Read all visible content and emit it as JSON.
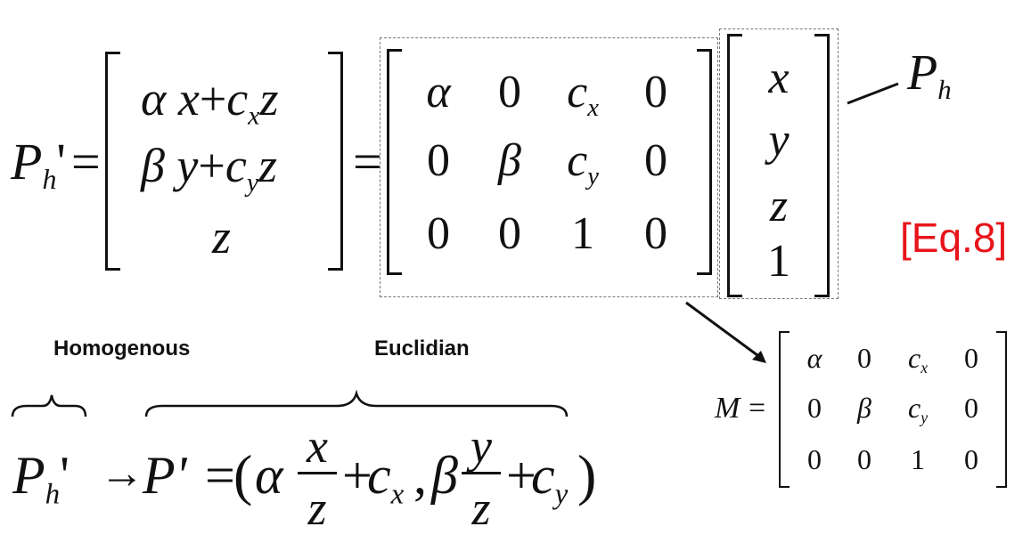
{
  "equation_label": "[Eq.8]",
  "label_color": "#e8141b",
  "top_eq": {
    "lhs_main": "P",
    "lhs_sub": "h",
    "lhs_prime": "'",
    "equals1": "=",
    "equals2": "=",
    "rows": [
      {
        "a": "α",
        "b": "x",
        "c": "c",
        "c_sub": "x",
        "d": "z",
        "op": "+"
      },
      {
        "a": "β",
        "b": "y",
        "c": "c",
        "c_sub": "y",
        "d": "z",
        "op": "+"
      },
      {
        "a": "",
        "b": "z",
        "c": "",
        "c_sub": "",
        "d": "",
        "op": ""
      }
    ],
    "matrix": [
      [
        "α",
        "0",
        "c",
        "0"
      ],
      [
        "0",
        "β",
        "c",
        "0"
      ],
      [
        "0",
        "0",
        "1",
        "0"
      ]
    ],
    "matrix_c_subs": [
      "x",
      "y"
    ],
    "vector": [
      "x",
      "y",
      "z",
      "1"
    ],
    "vector_label_main": "P",
    "vector_label_sub": "h"
  },
  "labels": {
    "homogenous": "Homogenous",
    "euclidian": "Euclidian"
  },
  "bottom_eq": {
    "lhs_main": "P",
    "lhs_sub": "h",
    "lhs_prime": "'",
    "arrow": "→",
    "p_prime": "P'",
    "equals": "=",
    "open": "(",
    "alpha": "α",
    "x_num": "x",
    "z_den1": "z",
    "plus1": "+",
    "c1": "c",
    "c1_sub": "x",
    "comma": ",",
    "beta": "β",
    "y_num": "y",
    "z_den2": "z",
    "plus2": "+",
    "c2": "c",
    "c2_sub": "y",
    "close": ")"
  },
  "m_eq": {
    "lhs": "M",
    "equals": "=",
    "matrix": [
      [
        "α",
        "0",
        "c",
        "0"
      ],
      [
        "0",
        "β",
        "c",
        "0"
      ],
      [
        "0",
        "0",
        "1",
        "0"
      ]
    ],
    "c_subs": [
      "x",
      "y"
    ]
  }
}
